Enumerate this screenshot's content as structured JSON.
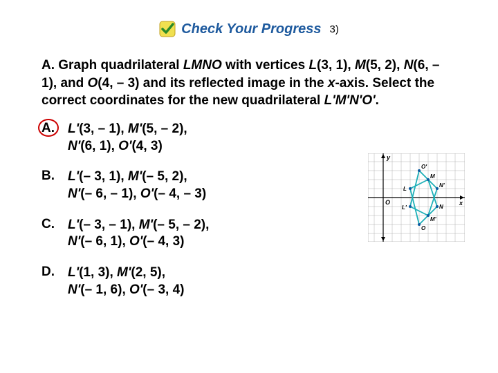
{
  "header": {
    "title": "Check Your Progress",
    "question_number": "3)"
  },
  "question": {
    "prefix": "A.",
    "text_parts": {
      "p1": "Graph quadrilateral ",
      "p2": "LMNO",
      "p3": " with vertices ",
      "p4": "L",
      "p5": "(3, 1), ",
      "p6": "M",
      "p7": "(5, 2), ",
      "p8": "N",
      "p9": "(6, – 1), and ",
      "p10": "O",
      "p11": "(4, – 3) and its reflected image in the ",
      "p12": "x",
      "p13": "-axis. Select the correct coordinates for the new quadrilateral ",
      "p14": "L'M'N'O'",
      "p15": "."
    }
  },
  "answers": {
    "a": {
      "letter": "A.",
      "line1_v1": "L'",
      "line1_t1": "(3, – 1), ",
      "line1_v2": "M'",
      "line1_t2": "(5, – 2),",
      "line2_v1": "N'",
      "line2_t1": "(6, 1), ",
      "line2_v2": "O'",
      "line2_t2": "(4, 3)",
      "correct": true
    },
    "b": {
      "letter": "B.",
      "line1_v1": "L'",
      "line1_t1": "(– 3, 1), ",
      "line1_v2": "M'",
      "line1_t2": "(– 5, 2),",
      "line2_v1": "N'",
      "line2_t1": "(– 6, – 1), ",
      "line2_v2": "O'",
      "line2_t2": "(– 4, – 3)",
      "correct": false
    },
    "c": {
      "letter": "C.",
      "line1_v1": "L'",
      "line1_t1": "(– 3, – 1), ",
      "line1_v2": "M'",
      "line1_t2": "(– 5, – 2),",
      "line2_v1": "N'",
      "line2_t1": "(– 6, 1), ",
      "line2_v2": "O'",
      "line2_t2": "(– 4, 3)",
      "correct": false
    },
    "d": {
      "letter": "D.",
      "line1_v1": "L'",
      "line1_t1": "(1, 3), ",
      "line1_v2": "M'",
      "line1_t2": "(2, 5),",
      "line2_v1": "N'",
      "line2_t1": "(– 1, 6), ",
      "line2_v2": "O'",
      "line2_t2": "(– 3, 4)",
      "correct": false
    }
  },
  "graph": {
    "grid_color": "#b0b0b0",
    "axis_color": "#000000",
    "points": {
      "L": {
        "x": 3,
        "y": 1,
        "label": "L"
      },
      "M": {
        "x": 5,
        "y": 2,
        "label": "M"
      },
      "N": {
        "x": 6,
        "y": -1,
        "label": "N"
      },
      "O": {
        "x": 4,
        "y": -3,
        "label": "O"
      },
      "Lp": {
        "x": 3,
        "y": -1,
        "label": "L'"
      },
      "Mp": {
        "x": 5,
        "y": -2,
        "label": "M'"
      },
      "Np": {
        "x": 6,
        "y": 1,
        "label": "N'"
      },
      "Op": {
        "x": 4,
        "y": 3,
        "label": "O'"
      }
    },
    "original_color": "#1eb0b8",
    "reflected_color": "#1eb0b8",
    "point_color": "#0a5aa0",
    "origin_label": "O",
    "x_label": "x",
    "y_label": "y"
  },
  "colors": {
    "title_color": "#1e5a9e",
    "circle_color": "#cc0000"
  }
}
